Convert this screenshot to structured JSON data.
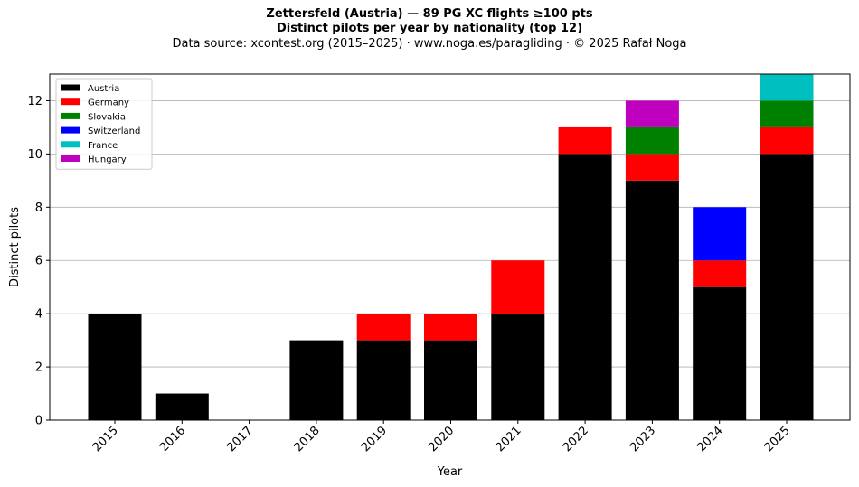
{
  "chart_data": {
    "type": "bar",
    "stacked": true,
    "title": "Zettersfeld (Austria)  —  89 PG XC flights ≥100 pts",
    "subtitle": "Distinct pilots per year by nationality (top 12)",
    "source": "Data source: xcontest.org (2015–2025)  ·  www.noga.es/paragliding  ·  © 2025 Rafał Noga",
    "xlabel": "Year",
    "ylabel": "Distinct pilots",
    "ylim": [
      0,
      13
    ],
    "yticks": [
      0,
      2,
      4,
      6,
      8,
      10,
      12
    ],
    "grid": "horizontal",
    "legend_position": "top-left",
    "categories": [
      "2015",
      "2016",
      "2017",
      "2018",
      "2019",
      "2020",
      "2021",
      "2022",
      "2023",
      "2024",
      "2025"
    ],
    "series": [
      {
        "name": "Austria",
        "color": "#000000",
        "values": [
          4,
          1,
          0,
          3,
          3,
          3,
          4,
          10,
          9,
          5,
          10
        ]
      },
      {
        "name": "Germany",
        "color": "#ff0000",
        "values": [
          0,
          0,
          0,
          0,
          1,
          1,
          2,
          1,
          1,
          1,
          1
        ]
      },
      {
        "name": "Slovakia",
        "color": "#008000",
        "values": [
          0,
          0,
          0,
          0,
          0,
          0,
          0,
          0,
          1,
          0,
          1
        ]
      },
      {
        "name": "Switzerland",
        "color": "#0000ff",
        "values": [
          0,
          0,
          0,
          0,
          0,
          0,
          0,
          0,
          0,
          2,
          0
        ]
      },
      {
        "name": "France",
        "color": "#00bfbf",
        "values": [
          0,
          0,
          0,
          0,
          0,
          0,
          0,
          0,
          0,
          0,
          1
        ]
      },
      {
        "name": "Hungary",
        "color": "#bf00bf",
        "values": [
          0,
          0,
          0,
          0,
          0,
          0,
          0,
          0,
          1,
          0,
          0
        ]
      }
    ]
  }
}
